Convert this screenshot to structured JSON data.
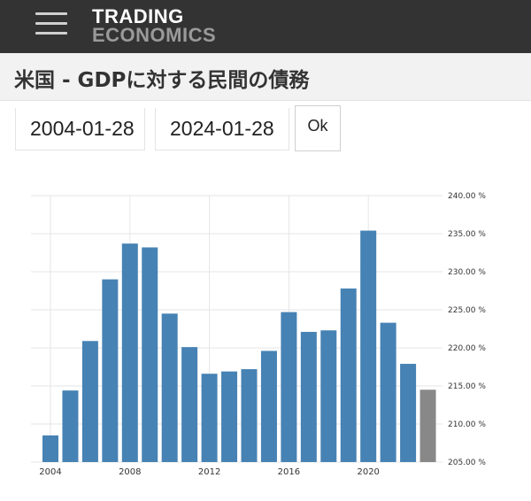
{
  "header": {
    "logo_line1": "TRADING",
    "logo_line2": "ECONOMICS",
    "menu_icon": "hamburger-menu-icon"
  },
  "page": {
    "title": "米国 - GDPに対する民間の債務"
  },
  "date_range": {
    "from": "2004-01-28",
    "to": "2024-01-28",
    "submit_label": "Ok"
  },
  "colors": {
    "bar": "#4682b4",
    "bar_forecast": "#888888",
    "header_bg": "#333333"
  },
  "chart_data": {
    "type": "bar",
    "x": [
      2004,
      2005,
      2006,
      2007,
      2008,
      2009,
      2010,
      2011,
      2012,
      2013,
      2014,
      2015,
      2016,
      2017,
      2018,
      2019,
      2020,
      2021,
      2022,
      2023
    ],
    "values": [
      208.5,
      214.4,
      220.9,
      229.0,
      233.7,
      233.2,
      224.5,
      220.1,
      216.6,
      216.9,
      217.2,
      219.6,
      224.7,
      222.1,
      222.3,
      227.8,
      235.4,
      223.3,
      217.9,
      214.5
    ],
    "highlight_last": true,
    "x_ticks": [
      "2004",
      "2008",
      "2012",
      "2016",
      "2020"
    ],
    "y_ticks": [
      "205.00 %",
      "210.00 %",
      "215.00 %",
      "220.00 %",
      "225.00 %",
      "230.00 %",
      "235.00 %",
      "240.00 %"
    ],
    "ylim": [
      205,
      240
    ],
    "grid": true
  }
}
